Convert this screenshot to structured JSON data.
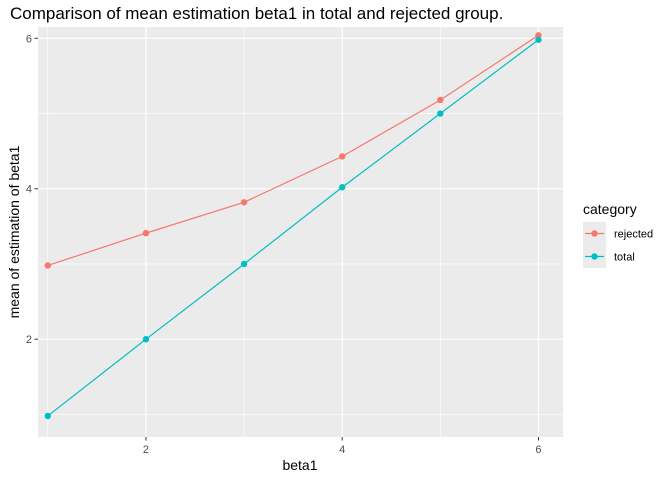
{
  "chart_data": {
    "type": "line",
    "title": "Comparison of mean estimation beta1 in total and rejected group.",
    "xlabel": "beta1",
    "ylabel": "mean of estimation of beta1",
    "x": [
      1,
      2,
      3,
      4,
      5,
      6
    ],
    "xlim": [
      0.9,
      6.25
    ],
    "ylim": [
      0.7,
      6.15
    ],
    "x_ticks": [
      2,
      4,
      6
    ],
    "y_ticks": [
      2,
      4,
      6
    ],
    "x_tick_labels": [
      "2",
      "4",
      "6"
    ],
    "y_tick_labels": [
      "2",
      "4",
      "6"
    ],
    "grid": true,
    "legend": {
      "title": "category",
      "position": "right"
    },
    "series": [
      {
        "name": "rejected",
        "color": "#F8766D",
        "values": [
          2.98,
          3.41,
          3.82,
          4.43,
          5.18,
          6.04
        ]
      },
      {
        "name": "total",
        "color": "#00BFC4",
        "values": [
          0.98,
          2.0,
          3.0,
          4.02,
          5.0,
          5.98
        ]
      }
    ]
  }
}
